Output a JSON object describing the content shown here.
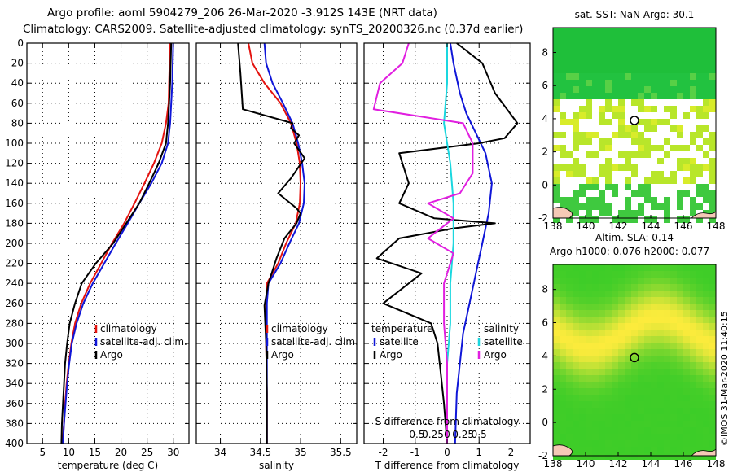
{
  "titles": {
    "line1": "Argo profile: aoml 5904279_206 26-Mar-2020 -3.912S 143E (NRT data)",
    "line2": "Climatology: CARS2009. Satellite-adjusted climatology: synTS_20200326.nc (0.37d earlier)"
  },
  "credit": "©IMOS 31-Mar-2020 11:40:15",
  "colors": {
    "red": "#e4130f",
    "blue": "#0f16d8",
    "black": "#000000",
    "cyan": "#1ad7df",
    "magenta": "#e11fe0",
    "grid": "#000000"
  },
  "chart_data": [
    {
      "id": "temperature",
      "type": "line",
      "xlabel": "temperature (deg C)",
      "xlim": [
        2,
        33
      ],
      "xticks": [
        5,
        10,
        15,
        20,
        25,
        30
      ],
      "xtick_labels": [
        "5",
        "10",
        "15",
        "20",
        "25",
        "30"
      ],
      "ylim": [
        0,
        400
      ],
      "yticks": [
        0,
        20,
        40,
        60,
        80,
        100,
        120,
        140,
        160,
        180,
        200,
        220,
        240,
        260,
        280,
        300,
        320,
        340,
        360,
        380,
        400
      ],
      "ytick_labels": [
        "0",
        "20",
        "40",
        "60",
        "80",
        "100",
        "120",
        "140",
        "160",
        "180",
        "200",
        "220",
        "240",
        "260",
        "280",
        "300",
        "320",
        "340",
        "360",
        "380",
        "400"
      ],
      "legend": [
        {
          "label": "climatology",
          "color": "red"
        },
        {
          "label": "satellite-adj. clim.",
          "color": "blue"
        },
        {
          "label": "Argo",
          "color": "black"
        }
      ],
      "series": [
        {
          "name": "climatology",
          "color": "red",
          "points": [
            [
              29.4,
              0
            ],
            [
              29.3,
              20
            ],
            [
              29.2,
              40
            ],
            [
              29.1,
              60
            ],
            [
              28.6,
              80
            ],
            [
              27.8,
              100
            ],
            [
              26.3,
              120
            ],
            [
              24.5,
              140
            ],
            [
              22.6,
              160
            ],
            [
              20.6,
              180
            ],
            [
              18.3,
              200
            ],
            [
              16.2,
              220
            ],
            [
              14.1,
              240
            ],
            [
              12.4,
              260
            ],
            [
              11.2,
              280
            ],
            [
              10.5,
              300
            ],
            [
              10.0,
              320
            ],
            [
              9.6,
              340
            ],
            [
              9.3,
              360
            ],
            [
              9.1,
              380
            ],
            [
              8.8,
              400
            ]
          ]
        },
        {
          "name": "satellite-adj. clim.",
          "color": "blue",
          "points": [
            [
              30.0,
              0
            ],
            [
              29.9,
              20
            ],
            [
              29.8,
              40
            ],
            [
              29.6,
              60
            ],
            [
              29.4,
              80
            ],
            [
              29.0,
              100
            ],
            [
              27.8,
              120
            ],
            [
              25.8,
              140
            ],
            [
              23.5,
              160
            ],
            [
              21.3,
              180
            ],
            [
              19.0,
              200
            ],
            [
              16.8,
              220
            ],
            [
              14.6,
              240
            ],
            [
              12.8,
              260
            ],
            [
              11.5,
              280
            ],
            [
              10.6,
              300
            ],
            [
              10.1,
              320
            ],
            [
              9.7,
              340
            ],
            [
              9.4,
              360
            ],
            [
              9.1,
              380
            ],
            [
              8.9,
              400
            ]
          ]
        },
        {
          "name": "Argo",
          "color": "black",
          "points": [
            [
              29.6,
              0
            ],
            [
              29.5,
              20
            ],
            [
              29.4,
              40
            ],
            [
              29.2,
              60
            ],
            [
              29.0,
              80
            ],
            [
              28.6,
              100
            ],
            [
              27.2,
              120
            ],
            [
              25.4,
              140
            ],
            [
              23.5,
              160
            ],
            [
              21.0,
              180
            ],
            [
              18.5,
              200
            ],
            [
              15.2,
              220
            ],
            [
              12.5,
              240
            ],
            [
              11.2,
              260
            ],
            [
              10.2,
              280
            ],
            [
              9.7,
              300
            ],
            [
              9.3,
              320
            ],
            [
              9.1,
              340
            ],
            [
              8.9,
              360
            ],
            [
              8.7,
              380
            ],
            [
              8.6,
              400
            ]
          ]
        }
      ]
    },
    {
      "id": "salinity",
      "type": "line",
      "xlabel": "salinity",
      "xlim": [
        33.7,
        35.7
      ],
      "xticks": [
        34,
        34.5,
        35,
        35.5
      ],
      "xtick_labels": [
        "34",
        "34.5",
        "35",
        "35.5"
      ],
      "ylim": [
        0,
        400
      ],
      "legend": [
        {
          "label": "climatology",
          "color": "red"
        },
        {
          "label": "satellite-adj. clim.",
          "color": "blue"
        },
        {
          "label": "Argo",
          "color": "black"
        }
      ],
      "series": [
        {
          "name": "climatology",
          "color": "red",
          "points": [
            [
              34.35,
              0
            ],
            [
              34.4,
              20
            ],
            [
              34.55,
              40
            ],
            [
              34.75,
              60
            ],
            [
              34.88,
              80
            ],
            [
              34.95,
              100
            ],
            [
              34.99,
              120
            ],
            [
              35.0,
              140
            ],
            [
              34.99,
              160
            ],
            [
              34.94,
              180
            ],
            [
              34.82,
              200
            ],
            [
              34.72,
              220
            ],
            [
              34.58,
              240
            ],
            [
              34.57,
              260
            ],
            [
              34.57,
              300
            ],
            [
              34.58,
              350
            ],
            [
              34.58,
              400
            ]
          ]
        },
        {
          "name": "satellite-adj. clim.",
          "color": "blue",
          "points": [
            [
              34.55,
              0
            ],
            [
              34.57,
              20
            ],
            [
              34.65,
              40
            ],
            [
              34.78,
              60
            ],
            [
              34.9,
              80
            ],
            [
              34.97,
              100
            ],
            [
              35.02,
              120
            ],
            [
              35.05,
              140
            ],
            [
              35.04,
              160
            ],
            [
              34.98,
              180
            ],
            [
              34.86,
              200
            ],
            [
              34.75,
              220
            ],
            [
              34.6,
              240
            ],
            [
              34.58,
              260
            ],
            [
              34.58,
              300
            ],
            [
              34.58,
              350
            ],
            [
              34.58,
              400
            ]
          ]
        },
        {
          "name": "Argo",
          "color": "black",
          "points": [
            [
              34.22,
              0
            ],
            [
              34.25,
              30
            ],
            [
              34.28,
              66
            ],
            [
              34.9,
              80
            ],
            [
              34.88,
              85
            ],
            [
              34.98,
              92
            ],
            [
              34.92,
              100
            ],
            [
              35.05,
              115
            ],
            [
              34.88,
              135
            ],
            [
              34.72,
              150
            ],
            [
              34.95,
              165
            ],
            [
              35.0,
              170
            ],
            [
              34.95,
              180
            ],
            [
              34.8,
              195
            ],
            [
              34.7,
              215
            ],
            [
              34.6,
              240
            ],
            [
              34.55,
              262
            ],
            [
              34.57,
              300
            ],
            [
              34.58,
              350
            ],
            [
              34.58,
              400
            ]
          ]
        }
      ]
    },
    {
      "id": "difference",
      "type": "line",
      "xlabel": "T difference from climatology",
      "xlim": [
        -2.6,
        2.6
      ],
      "xticks": [
        -2,
        -1,
        0,
        1,
        2
      ],
      "xtick_labels": [
        "-2",
        "-1",
        "0",
        "1",
        "2"
      ],
      "top_axis_label": "S difference from climatology",
      "top_ticks": [
        -0.5,
        -0.25,
        0,
        0.25,
        0.5
      ],
      "top_tick_labels": [
        "-0.5",
        "-0.25",
        "0",
        "0.25",
        "0.5"
      ],
      "ylim": [
        0,
        400
      ],
      "legend": [
        {
          "label": "temperature",
          "group": "T",
          "color": "none"
        },
        {
          "label": "satellite",
          "group": "T",
          "color": "blue"
        },
        {
          "label": "Argo",
          "group": "T",
          "color": "black"
        },
        {
          "label": "salinity",
          "group": "S",
          "color": "none"
        },
        {
          "label": "satellite",
          "group": "S",
          "color": "cyan"
        },
        {
          "label": "Argo",
          "group": "S",
          "color": "magenta"
        }
      ],
      "series": [
        {
          "name": "T satellite",
          "color": "blue",
          "points": [
            [
              0.1,
              0
            ],
            [
              0.2,
              20
            ],
            [
              0.4,
              50
            ],
            [
              0.6,
              70
            ],
            [
              0.9,
              90
            ],
            [
              1.2,
              110
            ],
            [
              1.4,
              140
            ],
            [
              1.3,
              170
            ],
            [
              1.1,
              200
            ],
            [
              0.9,
              230
            ],
            [
              0.7,
              260
            ],
            [
              0.5,
              290
            ],
            [
              0.4,
              320
            ],
            [
              0.3,
              350
            ],
            [
              0.25,
              400
            ]
          ]
        },
        {
          "name": "T Argo",
          "color": "black",
          "points": [
            [
              0.3,
              0
            ],
            [
              1.1,
              20
            ],
            [
              1.5,
              50
            ],
            [
              2.2,
              80
            ],
            [
              1.8,
              95
            ],
            [
              1.0,
              100
            ],
            [
              -1.5,
              110
            ],
            [
              -1.2,
              140
            ],
            [
              -1.5,
              160
            ],
            [
              -0.4,
              175
            ],
            [
              1.5,
              180
            ],
            [
              0.2,
              185
            ],
            [
              -1.5,
              195
            ],
            [
              -2.2,
              215
            ],
            [
              -0.8,
              230
            ],
            [
              -2.0,
              260
            ],
            [
              -0.5,
              280
            ],
            [
              -0.3,
              300
            ],
            [
              -0.2,
              330
            ],
            [
              -0.1,
              360
            ],
            [
              0.0,
              400
            ]
          ]
        },
        {
          "name": "S satellite",
          "color": "cyan",
          "points": [
            [
              0.0,
              0
            ],
            [
              0.0,
              40
            ],
            [
              -0.1,
              80
            ],
            [
              0.1,
              120
            ],
            [
              0.2,
              160
            ],
            [
              0.2,
              200
            ],
            [
              0.1,
              240
            ],
            [
              0.1,
              280
            ],
            [
              0.0,
              320
            ],
            [
              0.0,
              360
            ],
            [
              0.0,
              400
            ]
          ]
        },
        {
          "name": "S Argo",
          "color": "magenta",
          "points": [
            [
              -1.2,
              0
            ],
            [
              -1.4,
              20
            ],
            [
              -2.1,
              40
            ],
            [
              -2.3,
              66
            ],
            [
              0.5,
              80
            ],
            [
              0.8,
              100
            ],
            [
              0.8,
              130
            ],
            [
              0.4,
              150
            ],
            [
              -0.6,
              160
            ],
            [
              0.2,
              175
            ],
            [
              -0.6,
              195
            ],
            [
              0.2,
              210
            ],
            [
              -0.1,
              240
            ],
            [
              -0.1,
              280
            ],
            [
              0.0,
              320
            ],
            [
              0.0,
              400
            ]
          ]
        }
      ]
    },
    {
      "id": "sst_map",
      "type": "heatmap",
      "title": "sat. SST: NaN Argo: 30.1",
      "xlim": [
        138,
        148
      ],
      "xticks": [
        138,
        140,
        142,
        144,
        146,
        148
      ],
      "xtick_labels": [
        "138",
        "140",
        "142",
        "144",
        "146",
        "148"
      ],
      "ylim": [
        -2,
        9.5
      ],
      "yticks": [
        -2,
        0,
        2,
        4,
        6,
        8
      ],
      "ytick_labels": [
        "-2",
        "0",
        "2",
        "4",
        "6",
        "8"
      ],
      "argo_position": [
        143,
        3.9
      ]
    },
    {
      "id": "sla_map",
      "type": "heatmap",
      "title": "Altim. SLA: 0.14",
      "subtitle": "Argo h1000: 0.076 h2000: 0.077",
      "xlim": [
        138,
        148
      ],
      "xticks": [
        138,
        140,
        142,
        144,
        146,
        148
      ],
      "xtick_labels": [
        "138",
        "140",
        "142",
        "144",
        "146",
        "148"
      ],
      "ylim": [
        -2,
        9.5
      ],
      "yticks": [
        -2,
        0,
        2,
        4,
        6,
        8
      ],
      "ytick_labels": [
        "-2",
        "0",
        "2",
        "4",
        "6",
        "8"
      ],
      "argo_position": [
        143,
        3.9
      ]
    }
  ]
}
